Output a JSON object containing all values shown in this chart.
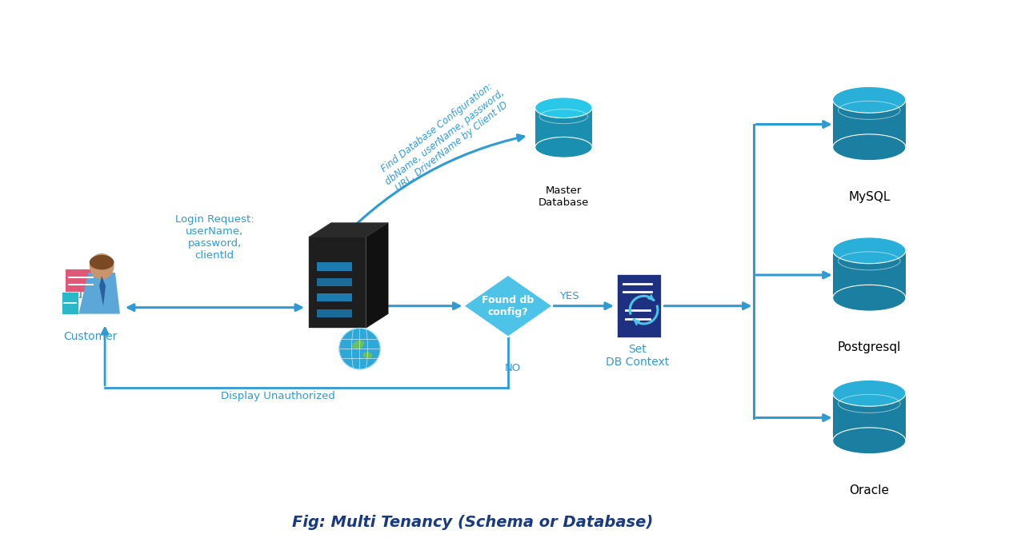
{
  "title": "Fig: Multi Tenancy (Schema or Database)",
  "title_fontsize": 14,
  "background_color": "#ffffff",
  "db_body_color": "#1a7fa0",
  "db_top_color": "#2ab0d8",
  "db_dark_body": "#156a88",
  "navy": "#1e3a80",
  "arrow_color": "#2e9bd4",
  "text_color": "#2e9bd4",
  "diamond_color": "#4dc3e8",
  "pink": "#e8607a",
  "teal_device": "#3ab8cc",
  "customer_label": "Customer",
  "diamond_label": "Found db\nconfig?",
  "yes_label": "YES",
  "no_label": "NO",
  "set_db_label": "Set\nDB Context",
  "master_db_label": "Master\nDatabase",
  "mysql_label": "MySQL",
  "postgresql_label": "Postgresql",
  "oracle_label": "Oracle",
  "login_request_text": "Login Request:\nuserName,\npassword,\nclientId",
  "db_config_line1": "Find Database Configuration:",
  "db_config_line2": "dbName, userName, password,",
  "db_config_line3": "URL, DriverName by Client ID",
  "display_unauth_text": "Display Unauthorized"
}
